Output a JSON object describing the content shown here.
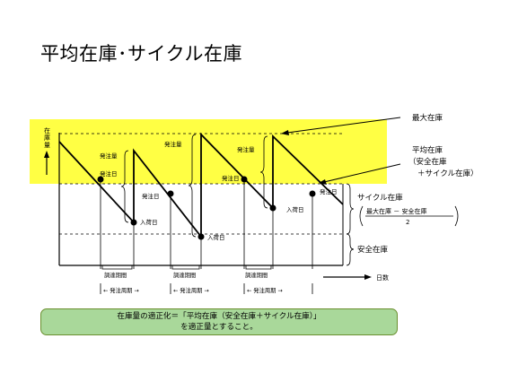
{
  "title": "平均在庫･サイクル在庫",
  "y_axis_label": "在庫量",
  "x_axis_label": "日数",
  "annotations": {
    "max_stock": "最大在庫",
    "avg_stock_line1": "平均在庫",
    "avg_stock_line2": "（安全在庫",
    "avg_stock_line3": "＋サイクル在庫）",
    "cycle_stock": "サイクル在庫",
    "cycle_formula_num": "最大在庫 － 安全在庫",
    "cycle_formula_den": "2",
    "safety_stock": "安全在庫"
  },
  "cycle_labels": {
    "order_qty": "発注量",
    "order_day": "発注日",
    "arrival_day": "入荷日",
    "lead_time": "調達期間",
    "order_cycle": "← 発注周期 →"
  },
  "summary": {
    "line1": "在庫量の適正化＝「平均在庫（安全在庫＋サイクル在庫）」",
    "line2": "を適正量とすること。"
  },
  "colors": {
    "highlight": "#ffff44",
    "summary_bg": "#a9d89a",
    "summary_border": "#6a8f2e"
  }
}
